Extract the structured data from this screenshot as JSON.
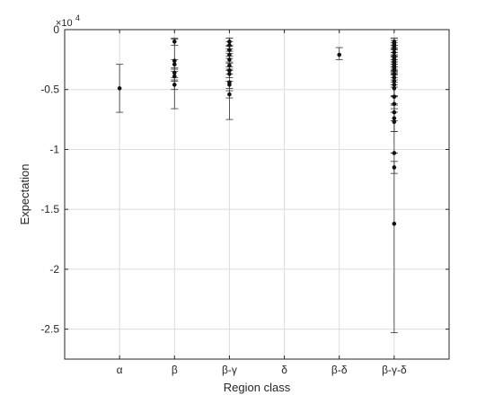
{
  "chart_data": {
    "type": "scatter",
    "xlabel": "Region class",
    "ylabel": "Expectation",
    "y_exponent_label": "×10",
    "y_exponent_power": "4",
    "categories": [
      "α",
      "β",
      "β-γ",
      "δ",
      "β-δ",
      "β-γ-δ"
    ],
    "ylim": [
      -27500,
      0
    ],
    "yticks": [
      0,
      -5000,
      -10000,
      -15000,
      -20000,
      -25000
    ],
    "ytick_labels": [
      "0",
      "-0.5",
      "-1",
      "-1.5",
      "-2",
      "-2.5"
    ],
    "grid": true,
    "series": [
      {
        "category": "α",
        "points": [
          {
            "y": -4900,
            "lo": -6900,
            "hi": -2900
          }
        ]
      },
      {
        "category": "β",
        "points": [
          {
            "y": -1000,
            "lo": -1300,
            "hi": -700
          },
          {
            "y": -2600,
            "lo": -6600,
            "hi": -800
          },
          {
            "y": -2900,
            "lo": -3300,
            "hi": -2500
          },
          {
            "y": -3600,
            "lo": -4000,
            "hi": -3200
          },
          {
            "y": -3900,
            "lo": -4300,
            "hi": -3500
          },
          {
            "y": -4600,
            "lo": -5000,
            "hi": -4200
          }
        ]
      },
      {
        "category": "β-γ",
        "points": [
          {
            "y": -1000,
            "lo": -1300,
            "hi": -700
          },
          {
            "y": -1300,
            "lo": -1600,
            "hi": -1000
          },
          {
            "y": -1700,
            "lo": -2000,
            "hi": -1400
          },
          {
            "y": -2100,
            "lo": -2400,
            "hi": -1800
          },
          {
            "y": -2500,
            "lo": -2800,
            "hi": -2200
          },
          {
            "y": -3000,
            "lo": -3300,
            "hi": -2700
          },
          {
            "y": -3400,
            "lo": -3700,
            "hi": -3100
          },
          {
            "y": -3700,
            "lo": -4000,
            "hi": -3400
          },
          {
            "y": -4400,
            "lo": -7500,
            "hi": -700
          },
          {
            "y": -4600,
            "lo": -4900,
            "hi": -4300
          },
          {
            "y": -5400,
            "lo": -5700,
            "hi": -5100
          }
        ]
      },
      {
        "category": "δ",
        "points": []
      },
      {
        "category": "β-δ",
        "points": [
          {
            "y": -2100,
            "lo": -2500,
            "hi": -1500
          }
        ]
      },
      {
        "category": "β-γ-δ",
        "points": [
          {
            "y": -1000,
            "lo": -1300,
            "hi": -700
          },
          {
            "y": -1200,
            "lo": -1500,
            "hi": -900
          },
          {
            "y": -1400,
            "lo": -1700,
            "hi": -1100
          },
          {
            "y": -1600,
            "lo": -1900,
            "hi": -1300
          },
          {
            "y": -1900,
            "lo": -2200,
            "hi": -1600
          },
          {
            "y": -2200,
            "lo": -2500,
            "hi": -1900
          },
          {
            "y": -2400,
            "lo": -2700,
            "hi": -2100
          },
          {
            "y": -2600,
            "lo": -2900,
            "hi": -2300
          },
          {
            "y": -2800,
            "lo": -3100,
            "hi": -2500
          },
          {
            "y": -3000,
            "lo": -3300,
            "hi": -2700
          },
          {
            "y": -3200,
            "lo": -3500,
            "hi": -2900
          },
          {
            "y": -3400,
            "lo": -3700,
            "hi": -3100
          },
          {
            "y": -3700,
            "lo": -4000,
            "hi": -3400
          },
          {
            "y": -4000,
            "lo": -4400,
            "hi": -3600
          },
          {
            "y": -4300,
            "lo": -4800,
            "hi": -3800
          },
          {
            "y": -4600,
            "lo": -5600,
            "hi": -3600
          },
          {
            "y": -4900,
            "lo": -5600,
            "hi": -4200
          },
          {
            "y": -5600,
            "lo": -6600,
            "hi": -4600
          },
          {
            "y": -6200,
            "lo": -6900,
            "hi": -5500
          },
          {
            "y": -6900,
            "lo": -7600,
            "hi": -6200
          },
          {
            "y": -7400,
            "lo": -8500,
            "hi": -6300
          },
          {
            "y": -7700,
            "lo": -8500,
            "hi": -6900
          },
          {
            "y": -16200,
            "lo": -25300,
            "hi": -700
          },
          {
            "y": -11500,
            "lo": -12000,
            "hi": -11000
          },
          {
            "y": -10300,
            "lo": -10300,
            "hi": -10300
          }
        ]
      }
    ]
  }
}
